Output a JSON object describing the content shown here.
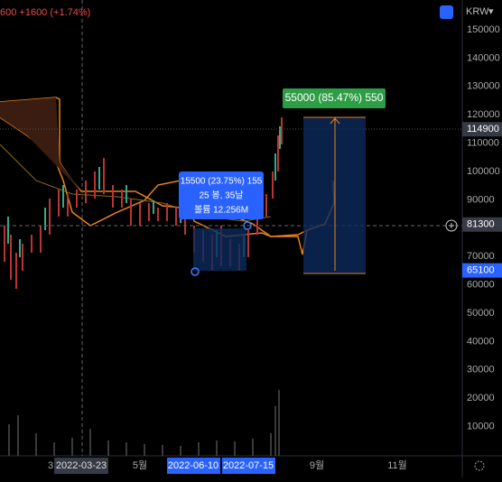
{
  "header": {
    "change": "600 +1600 (+1.74%)",
    "currency": "KRW"
  },
  "price_axis": {
    "labels": [
      150000,
      140000,
      130000,
      120000,
      110000,
      100000,
      90000,
      70000,
      60000,
      50000,
      40000,
      30000,
      20000,
      10000
    ],
    "tags": [
      {
        "text": "114900",
        "price": 114900
      },
      {
        "text": "81300",
        "price": 81300
      },
      {
        "text": "65100",
        "price": 65100
      }
    ]
  },
  "position_label": "55000 (85.47%) 550",
  "tooltip": {
    "line1": "15500 (23.75%) 155",
    "line2": "25 봉, 35날",
    "line3": "볼륨 12.256M"
  },
  "time_axis": {
    "label1": "3",
    "label2": "2022-03-23",
    "label3": "5월",
    "label4": "2022-06-10",
    "label5": "2022-07-15",
    "label6": "9월",
    "label7": "11월"
  }
}
